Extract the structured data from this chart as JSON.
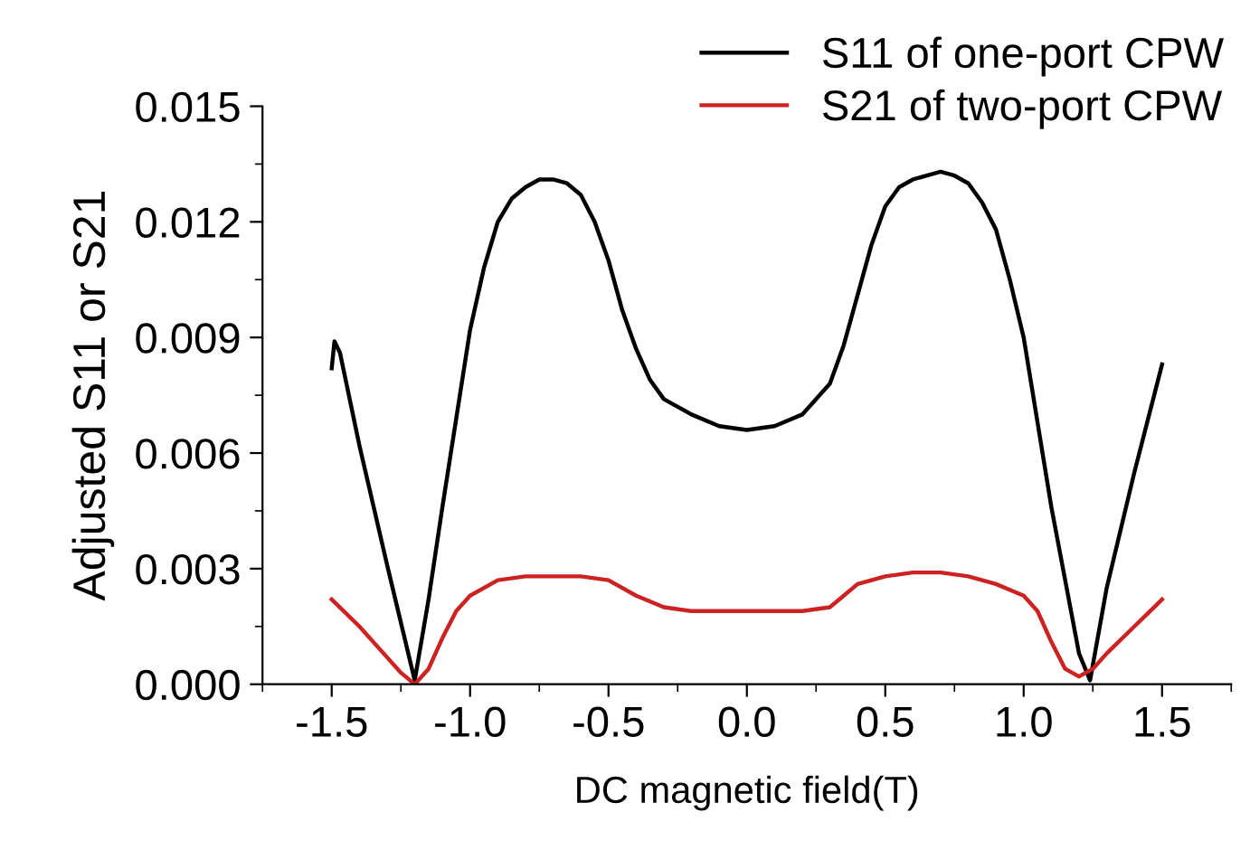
{
  "chart_data": {
    "type": "line",
    "xlabel": "DC magnetic field(T)",
    "ylabel": "Adjusted S11 or S21",
    "xlim": [
      -1.75,
      1.75
    ],
    "xticks": [
      {
        "value": -1.5,
        "label": "-1.5"
      },
      {
        "value": -1.0,
        "label": "-1.0"
      },
      {
        "value": -0.5,
        "label": "-0.5"
      },
      {
        "value": 0.0,
        "label": "0.0"
      },
      {
        "value": 0.5,
        "label": "0.5"
      },
      {
        "value": 1.0,
        "label": "1.0"
      },
      {
        "value": 1.5,
        "label": "1.5"
      }
    ],
    "ylim": [
      0,
      0.015
    ],
    "yticks": [
      {
        "value": 0,
        "label": "0.000"
      },
      {
        "value": 0.003,
        "label": "0.003"
      },
      {
        "value": 0.006,
        "label": "0.006"
      },
      {
        "value": 0.009,
        "label": "0.009"
      },
      {
        "value": 0.012,
        "label": "0.012"
      },
      {
        "value": 0.015,
        "label": "0.015"
      }
    ],
    "grid": false,
    "legend": "top right",
    "marker": "none",
    "line_style": "solid",
    "series": [
      {
        "name": "S11 of one-port CPW",
        "color": "#000000",
        "x": [
          -1.5,
          -1.49,
          -1.47,
          -1.4,
          -1.3,
          -1.2,
          -1.15,
          -1.1,
          -1.0,
          -0.95,
          -0.9,
          -0.85,
          -0.8,
          -0.75,
          -0.7,
          -0.65,
          -0.6,
          -0.55,
          -0.5,
          -0.45,
          -0.4,
          -0.35,
          -0.3,
          -0.2,
          -0.1,
          0.0,
          0.1,
          0.2,
          0.3,
          0.35,
          0.4,
          0.45,
          0.5,
          0.55,
          0.6,
          0.65,
          0.7,
          0.75,
          0.8,
          0.85,
          0.9,
          0.95,
          1.0,
          1.1,
          1.2,
          1.24,
          1.3,
          1.4,
          1.5
        ],
        "values": [
          0.0082,
          0.0089,
          0.0086,
          0.0062,
          0.0031,
          0.0001,
          0.0022,
          0.0046,
          0.0092,
          0.0108,
          0.012,
          0.0126,
          0.0129,
          0.0131,
          0.0131,
          0.013,
          0.0127,
          0.012,
          0.011,
          0.0097,
          0.0087,
          0.0079,
          0.0074,
          0.007,
          0.0067,
          0.0066,
          0.0067,
          0.007,
          0.0078,
          0.0088,
          0.0101,
          0.0114,
          0.0124,
          0.0129,
          0.0131,
          0.0132,
          0.0133,
          0.0132,
          0.013,
          0.0125,
          0.0118,
          0.0105,
          0.009,
          0.0046,
          0.0008,
          0.0001,
          0.0025,
          0.0055,
          0.0083
        ]
      },
      {
        "name": "S21 of two-port CPW",
        "color": "#cc2222",
        "x": [
          -1.5,
          -1.4,
          -1.3,
          -1.25,
          -1.2,
          -1.15,
          -1.1,
          -1.05,
          -1.0,
          -0.9,
          -0.8,
          -0.7,
          -0.6,
          -0.5,
          -0.4,
          -0.3,
          -0.2,
          -0.1,
          0.0,
          0.1,
          0.2,
          0.3,
          0.35,
          0.4,
          0.5,
          0.6,
          0.7,
          0.8,
          0.9,
          1.0,
          1.05,
          1.1,
          1.15,
          1.2,
          1.25,
          1.3,
          1.4,
          1.5
        ],
        "values": [
          0.0022,
          0.0015,
          0.0007,
          0.0003,
          0.0,
          0.0004,
          0.0012,
          0.0019,
          0.0023,
          0.0027,
          0.0028,
          0.0028,
          0.0028,
          0.0027,
          0.0023,
          0.002,
          0.0019,
          0.0019,
          0.0019,
          0.0019,
          0.0019,
          0.002,
          0.0023,
          0.0026,
          0.0028,
          0.0029,
          0.0029,
          0.0028,
          0.0026,
          0.0023,
          0.0019,
          0.0011,
          0.0004,
          0.0002,
          0.0004,
          0.0008,
          0.0015,
          0.0022
        ]
      }
    ]
  }
}
